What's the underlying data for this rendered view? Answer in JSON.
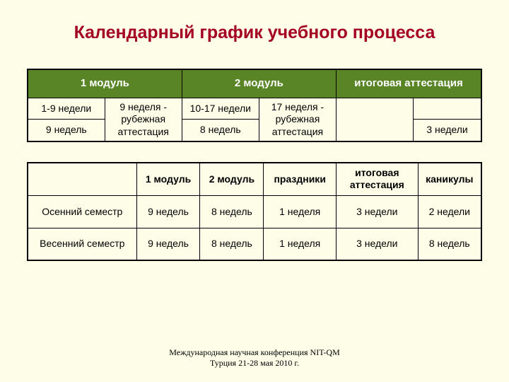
{
  "colors": {
    "page_background": "#fdfde8",
    "title_color": "#a40022",
    "header_bg": "#598527",
    "header_text": "#ffffff",
    "border": "#000000",
    "footer_text": "#000000"
  },
  "title": "Календарный график учебного процесса",
  "top_table": {
    "col_widths_pct": [
      17,
      17,
      17,
      17,
      17,
      15
    ],
    "header_row": {
      "cells": [
        {
          "text": "1 модуль",
          "colspan": 2
        },
        {
          "text": "2 модуль",
          "colspan": 2
        },
        {
          "text": "итоговая аттестация",
          "colspan": 2
        }
      ]
    },
    "body_rows": [
      [
        {
          "text": "1-9 недели"
        },
        {
          "text": "9 неделя - рубежная аттестация",
          "rowspan": 2
        },
        {
          "text": "10-17 недели"
        },
        {
          "text": "17 неделя - рубежная аттестация",
          "rowspan": 2
        },
        {
          "text": "",
          "rowspan": 2
        },
        {
          "text": "",
          "rowspan": 1,
          "hidden_pad": true
        }
      ],
      [
        {
          "text": "9 недель"
        },
        {
          "text": "8 недель"
        },
        {
          "text": "3 недели"
        }
      ]
    ]
  },
  "bottom_table": {
    "col_widths_pct": [
      24,
      14,
      14,
      16,
      18,
      14
    ],
    "header": [
      "",
      "1 модуль",
      "2 модуль",
      "праздники",
      "итоговая аттестация",
      "каникулы"
    ],
    "rows": [
      [
        "Осенний семестр",
        "9 недель",
        "8 недель",
        "1 неделя",
        "3 недели",
        "2 недели"
      ],
      [
        "Весенний семестр",
        "9 недель",
        "8 недель",
        "1 неделя",
        "3 недели",
        "8 недель"
      ]
    ]
  },
  "footer": {
    "line1": "Международная научная конференция NIT-QM",
    "line2": "Турция 21-28 мая 2010 г."
  }
}
